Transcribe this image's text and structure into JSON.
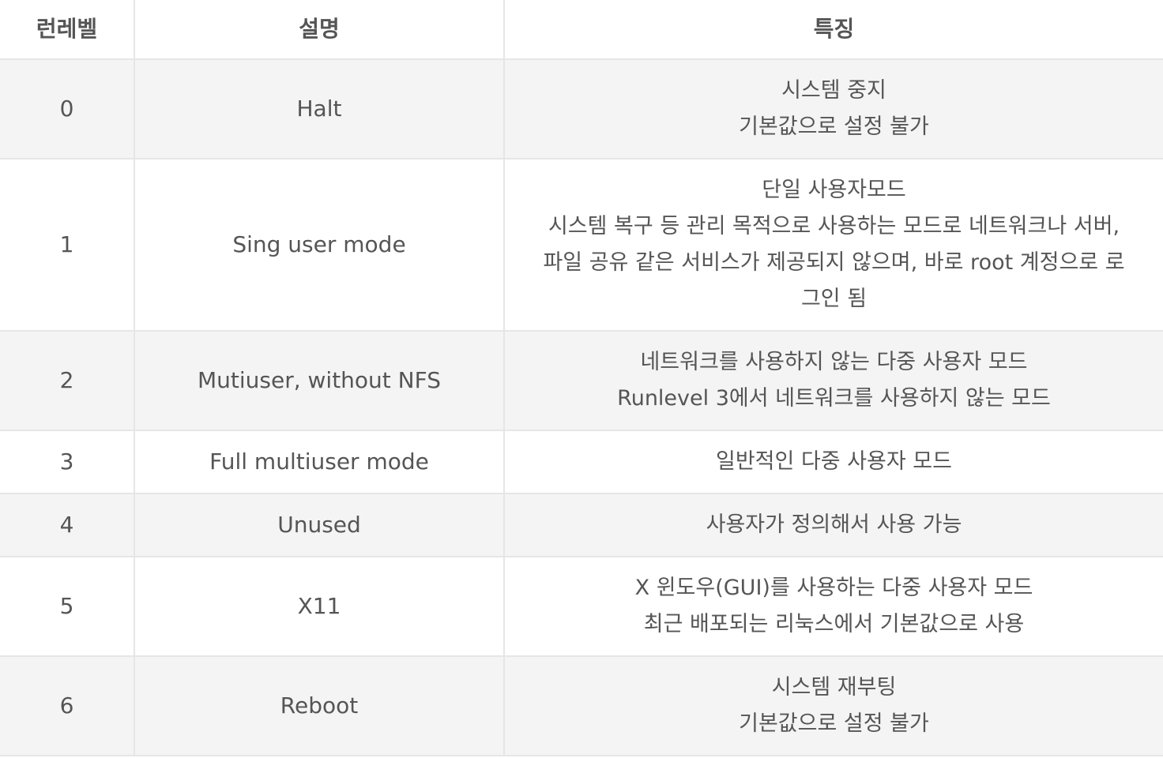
{
  "table": {
    "headers": [
      "런레벨",
      "설명",
      "특징"
    ],
    "rows": [
      {
        "level": "0",
        "desc": "Halt",
        "features": [
          "시스템 중지",
          "기본값으로 설정 불가"
        ]
      },
      {
        "level": "1",
        "desc": "Sing user mode",
        "features": [
          "단일 사용자모드",
          "시스템 복구 등 관리 목적으로 사용하는 모드로 네트워크나 서버,",
          "파일 공유 같은 서비스가 제공되지 않으며, 바로 root 계정으로 로",
          "그인 됨"
        ]
      },
      {
        "level": "2",
        "desc": "Mutiuser, without NFS",
        "features": [
          "네트워크를 사용하지 않는 다중 사용자 모드",
          "Runlevel 3에서 네트워크를 사용하지 않는 모드"
        ]
      },
      {
        "level": "3",
        "desc": "Full multiuser mode",
        "features": [
          "일반적인 다중 사용자 모드"
        ]
      },
      {
        "level": "4",
        "desc": "Unused",
        "features": [
          "사용자가 정의해서 사용 가능"
        ]
      },
      {
        "level": "5",
        "desc": "X11",
        "features": [
          "X 윈도우(GUI)를 사용하는 다중 사용자 모드",
          "최근 배포되는 리눅스에서 기본값으로 사용"
        ]
      },
      {
        "level": "6",
        "desc": "Reboot",
        "features": [
          "시스템 재부팅",
          "기본값으로 설정 불가"
        ]
      }
    ]
  }
}
